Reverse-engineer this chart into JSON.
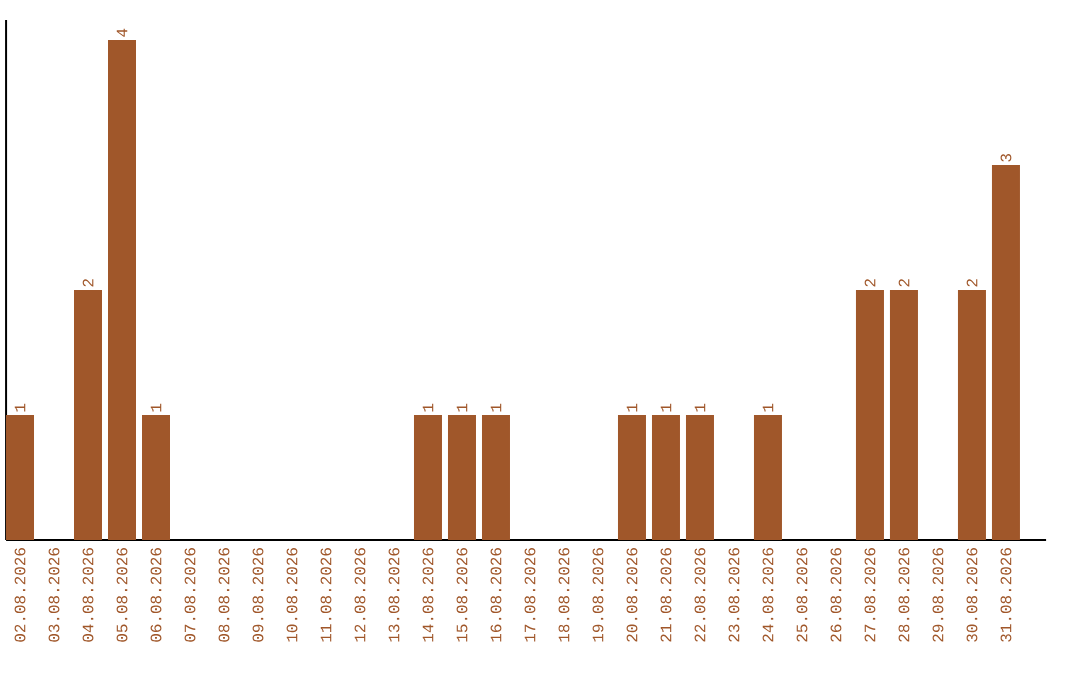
{
  "chart_data": {
    "type": "bar",
    "categories": [
      "02.08.2026",
      "03.08.2026",
      "04.08.2026",
      "05.08.2026",
      "06.08.2026",
      "07.08.2026",
      "08.08.2026",
      "09.08.2026",
      "10.08.2026",
      "11.08.2026",
      "12.08.2026",
      "13.08.2026",
      "14.08.2026",
      "15.08.2026",
      "16.08.2026",
      "17.08.2026",
      "18.08.2026",
      "19.08.2026",
      "20.08.2026",
      "21.08.2026",
      "22.08.2026",
      "23.08.2026",
      "24.08.2026",
      "25.08.2026",
      "26.08.2026",
      "27.08.2026",
      "28.08.2026",
      "29.08.2026",
      "30.08.2026",
      "31.08.2026"
    ],
    "values": [
      1,
      0,
      2,
      4,
      1,
      0,
      0,
      0,
      0,
      0,
      0,
      0,
      1,
      1,
      1,
      0,
      0,
      0,
      1,
      1,
      1,
      0,
      1,
      0,
      0,
      2,
      2,
      0,
      2,
      3
    ],
    "value_labels": [
      "1",
      null,
      "2",
      "4",
      "1",
      null,
      null,
      null,
      null,
      null,
      null,
      null,
      "1",
      "1",
      "1",
      null,
      null,
      null,
      "1",
      "1",
      "1",
      null,
      "1",
      null,
      null,
      "2",
      "2",
      null,
      "2",
      "3"
    ],
    "color": "#a0572a",
    "ylim": [
      0,
      4.16
    ]
  }
}
